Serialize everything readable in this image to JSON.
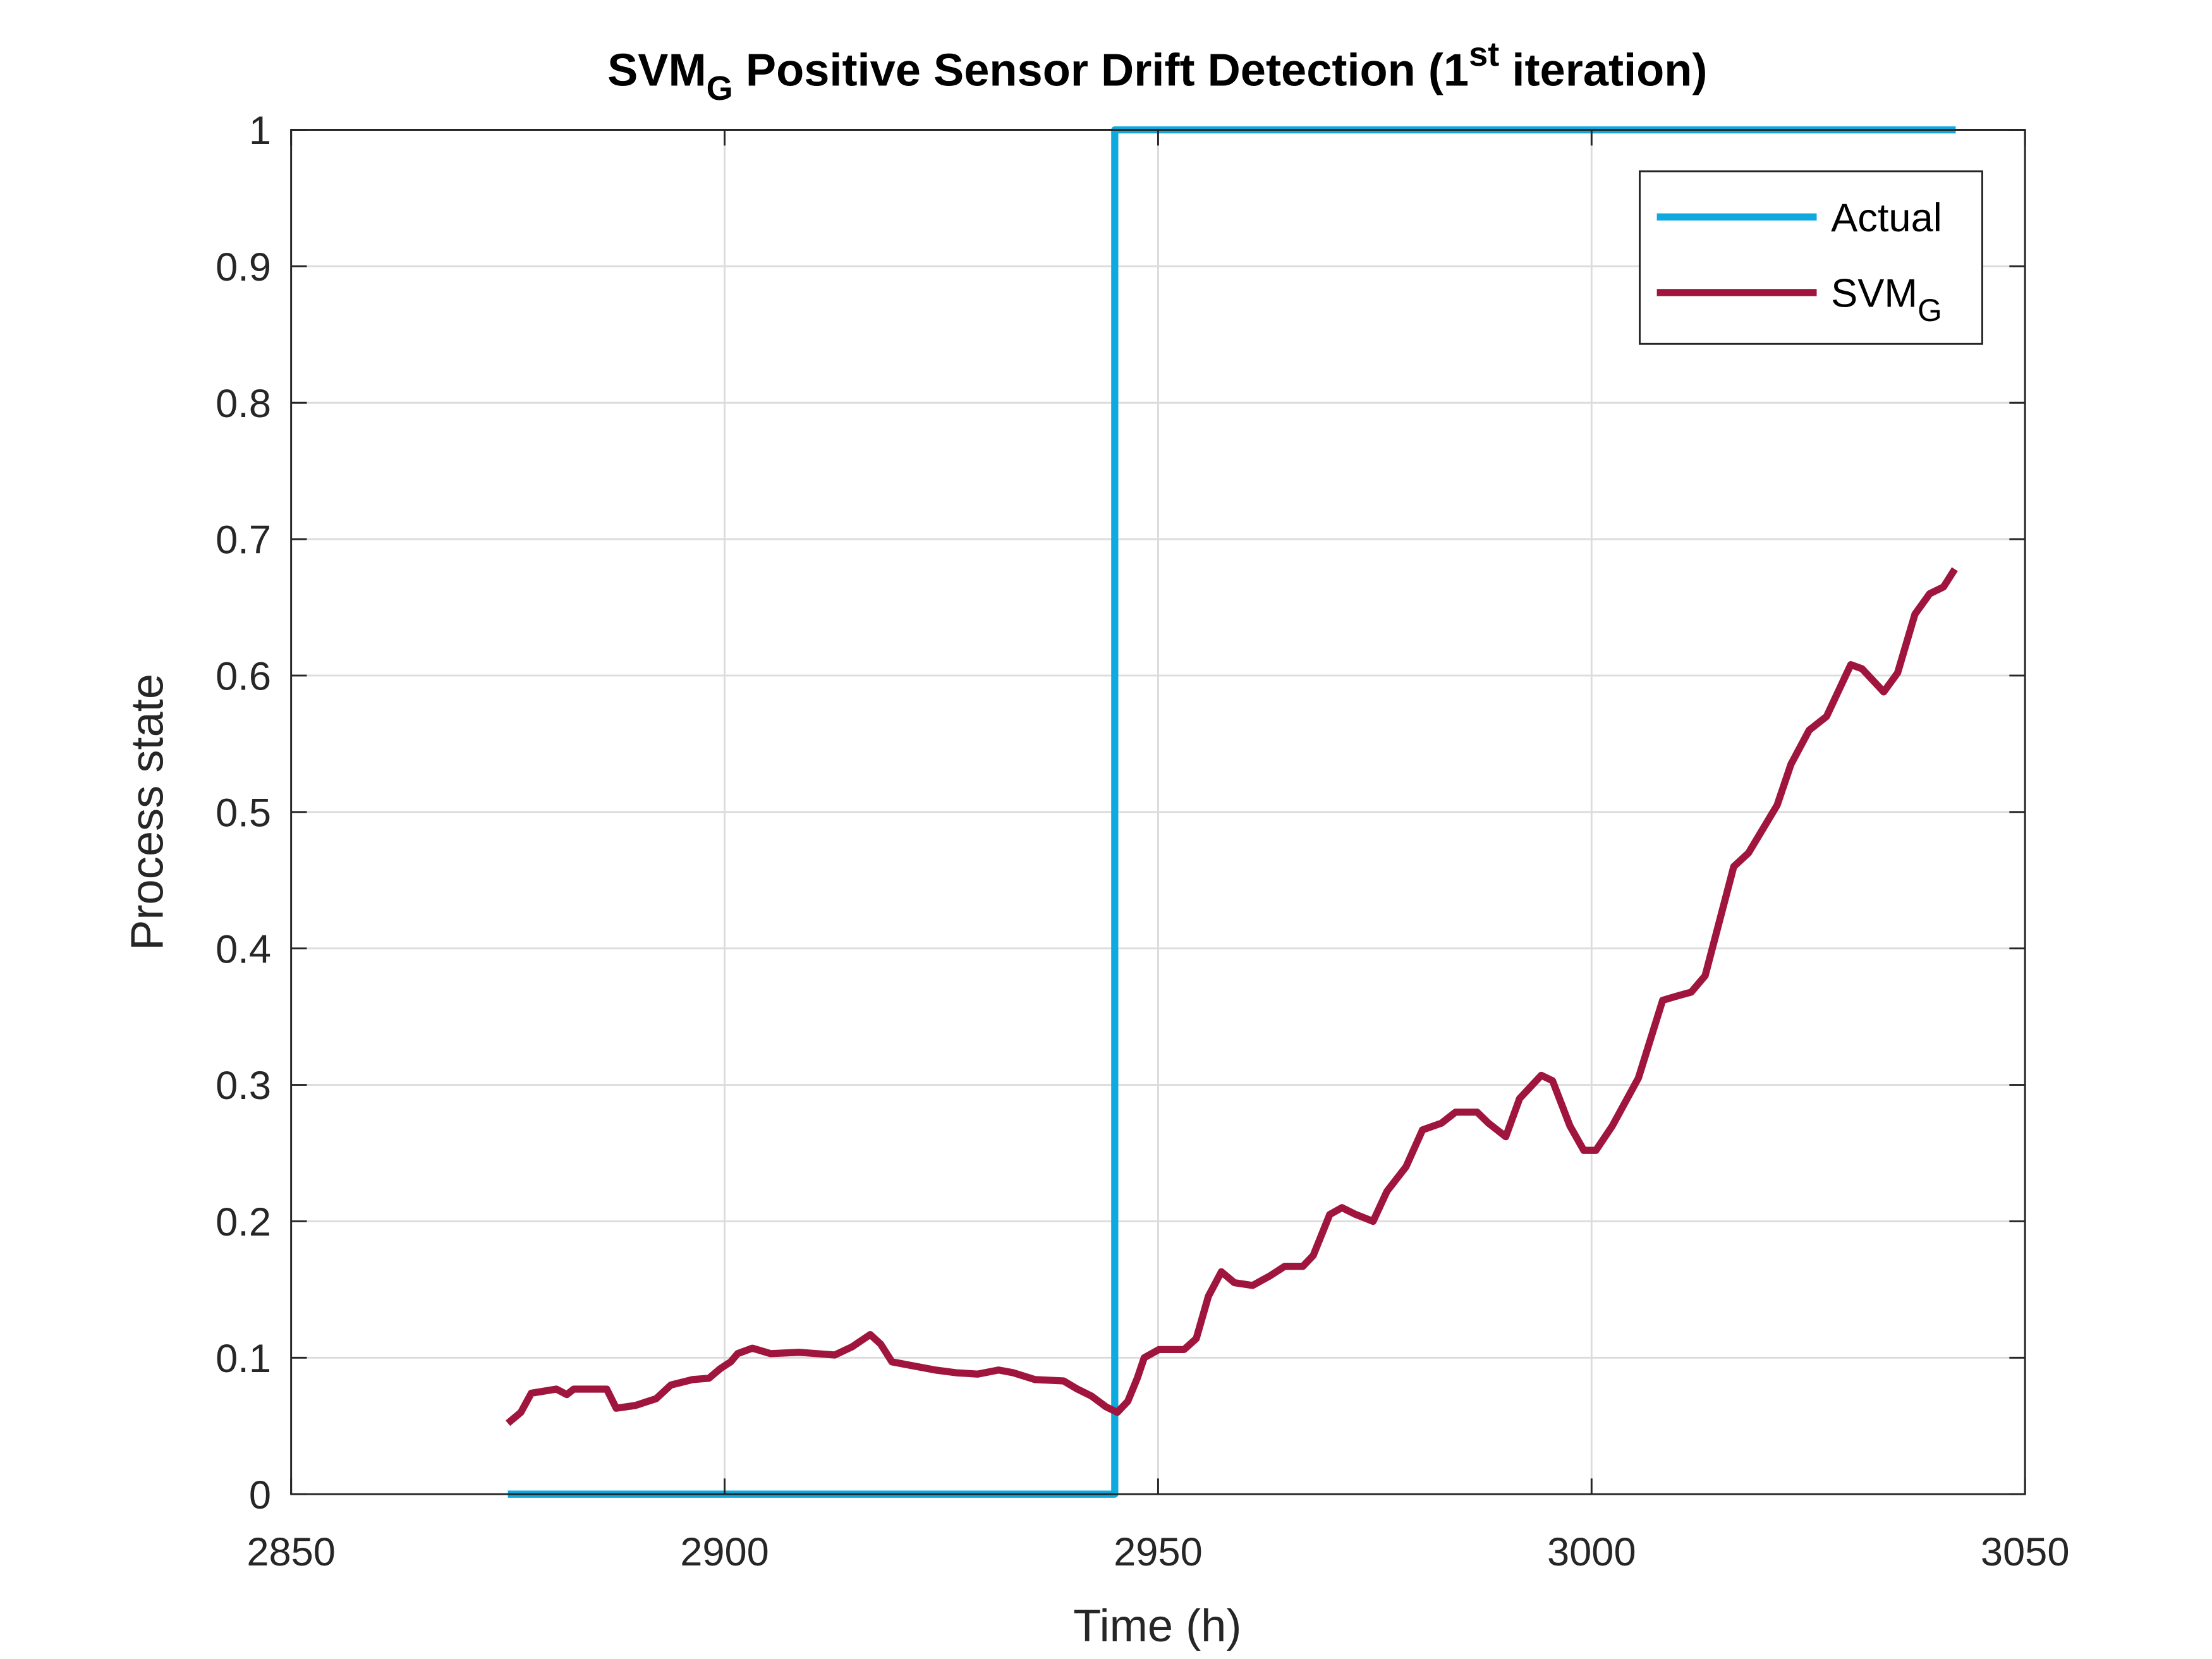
{
  "chart_data": {
    "type": "line",
    "title": [
      "SVM",
      "G",
      " Positive Sensor Drift Detection (1",
      "st",
      " iteration)"
    ],
    "xlabel": "Time (h)",
    "ylabel": "Process state",
    "xlim": [
      2850,
      3050
    ],
    "xticks": [
      2850,
      2900,
      2950,
      3000,
      3050
    ],
    "ylim": [
      0,
      1
    ],
    "yticks": [
      0,
      0.1,
      0.2,
      0.3,
      0.4,
      0.5,
      0.6,
      0.7,
      0.8,
      0.9,
      1
    ],
    "grid": true,
    "legend": "upper right",
    "series": [
      {
        "name": [
          "Actual"
        ],
        "color": "#0eaadf",
        "x": [
          2875,
          2945,
          2945,
          3042
        ],
        "values": [
          0,
          0,
          1,
          1
        ]
      },
      {
        "name": [
          "SVM",
          "G"
        ],
        "color": "#a0153e",
        "x": [
          2875,
          2876.5,
          2877.7,
          2880.6,
          2881.8,
          2882.6,
          2886.4,
          2887.5,
          2889.7,
          2892.1,
          2893.8,
          2896.3,
          2898.2,
          2899.5,
          2900.7,
          2901.5,
          2903.2,
          2905.3,
          2908.6,
          2912.7,
          2914.7,
          2916.8,
          2918,
          2919.3,
          2921.8,
          2924.3,
          2926.7,
          2929.2,
          2931.6,
          2933.3,
          2935.8,
          2939.1,
          2940.7,
          2942.3,
          2944,
          2945.3,
          2946.5,
          2947.6,
          2948.4,
          2950.1,
          2953,
          2954.4,
          2955.8,
          2957.3,
          2958.8,
          2960.9,
          2962.9,
          2964.6,
          2966.7,
          2967.9,
          2969.8,
          2971.2,
          2972.8,
          2974.8,
          2976.4,
          2978.6,
          2980.5,
          2982.7,
          2984.3,
          2986.8,
          2988.1,
          2990.1,
          2991.7,
          2994.2,
          2995.5,
          2997.5,
          2999.1,
          3000.5,
          3002.4,
          3005.4,
          3008.2,
          3009.8,
          3011.5,
          3013.1,
          3016.4,
          3018.1,
          3021.4,
          3023,
          3025.1,
          3027.1,
          3029.9,
          3031.2,
          3033.7,
          3035.3,
          3037.3,
          3039,
          3040.6,
          3041.9
        ],
        "values": [
          0.052,
          0.06,
          0.074,
          0.077,
          0.073,
          0.077,
          0.077,
          0.063,
          0.065,
          0.07,
          0.08,
          0.084,
          0.085,
          0.092,
          0.097,
          0.103,
          0.107,
          0.103,
          0.104,
          0.102,
          0.108,
          0.117,
          0.11,
          0.097,
          0.094,
          0.091,
          0.089,
          0.088,
          0.091,
          0.089,
          0.084,
          0.083,
          0.077,
          0.072,
          0.064,
          0.06,
          0.068,
          0.085,
          0.1,
          0.106,
          0.106,
          0.114,
          0.145,
          0.163,
          0.155,
          0.153,
          0.16,
          0.167,
          0.167,
          0.175,
          0.205,
          0.21,
          0.205,
          0.2,
          0.222,
          0.24,
          0.267,
          0.272,
          0.28,
          0.28,
          0.272,
          0.262,
          0.29,
          0.307,
          0.303,
          0.27,
          0.252,
          0.252,
          0.27,
          0.305,
          0.362,
          0.365,
          0.368,
          0.38,
          0.46,
          0.47,
          0.505,
          0.535,
          0.56,
          0.57,
          0.608,
          0.605,
          0.588,
          0.602,
          0.645,
          0.66,
          0.665,
          0.678
        ]
      }
    ]
  }
}
